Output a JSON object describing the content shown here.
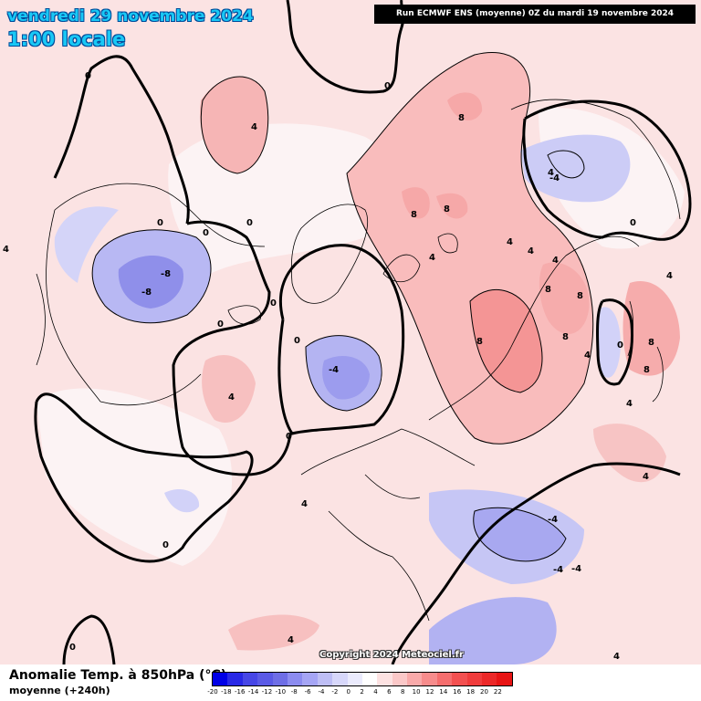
{
  "header": {
    "date_title": "vendredi 29 novembre 2024",
    "time_title": "1:00 locale",
    "run_info": "Run ECMWF ENS (moyenne) 0Z du mardi 19 novembre 2024"
  },
  "footer": {
    "variable_title": "Anomalie Temp. à 850hPa (°C)",
    "subtitle": "moyenne  (+240h)",
    "copyright": "Copyright 2024 Meteociel.fr"
  },
  "colorbar": {
    "colors": [
      "#0000e6",
      "#2828e6",
      "#4646e6",
      "#5a5ae6",
      "#6e6ee6",
      "#8c8cf0",
      "#a5a5f5",
      "#bebef5",
      "#d7d7fa",
      "#ebebfd",
      "#ffffff",
      "#fde2e2",
      "#fbc8c8",
      "#f9aaaa",
      "#f78c8c",
      "#f56e6e",
      "#f35050",
      "#f03c3c",
      "#ec2828",
      "#e81414"
    ],
    "labels": [
      "-20",
      "-18",
      "-16",
      "-14",
      "-12",
      "-10",
      "-8",
      "-6",
      "-4",
      "-2",
      "0",
      "2",
      "4",
      "6",
      "8",
      "10",
      "12",
      "14",
      "16",
      "18",
      "20",
      "22"
    ]
  },
  "map": {
    "background_color": "#fbe3e3",
    "contour_labels": [
      "0",
      "0",
      "0",
      "0",
      "0",
      "0",
      "0",
      "0",
      "0",
      "0",
      "0",
      "0",
      "0",
      "4",
      "4",
      "4",
      "4",
      "4",
      "4",
      "4",
      "4",
      "4",
      "4",
      "4",
      "4",
      "4",
      "4",
      "4",
      "-4",
      "-4",
      "-4",
      "-4",
      "-4",
      "-8",
      "-8",
      "8",
      "8",
      "8",
      "8",
      "8",
      "8",
      "8",
      "8",
      "8"
    ]
  }
}
